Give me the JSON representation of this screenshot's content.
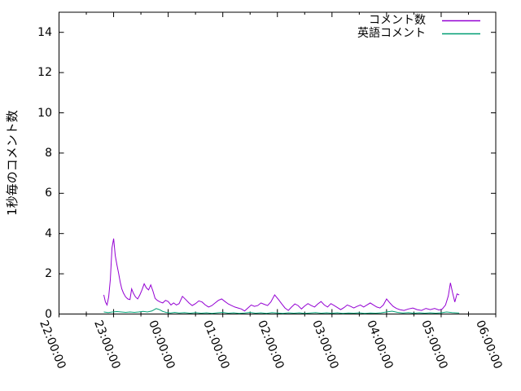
{
  "figure": {
    "background": "#ffffff",
    "text_color": "#000000",
    "axis_color": "#000000"
  },
  "chart_data": {
    "type": "line",
    "title": "",
    "xlabel": "",
    "ylabel": "1秒毎のコメント数",
    "x_start_label": "22:00:00",
    "x_tick_labels": [
      "22:00:00",
      "23:00:00",
      "00:00:00",
      "01:00:00",
      "02:00:00",
      "03:00:00",
      "04:00:00",
      "05:00:00",
      "06:00:00"
    ],
    "x_minor_tick_interval_hours": 0.5,
    "y_tick_labels": [
      "0",
      "2",
      "4",
      "6",
      "8",
      "10",
      "12",
      "14"
    ],
    "ylim": [
      0,
      15
    ],
    "xlim_hours": [
      0,
      8
    ],
    "grid": false,
    "legend_position": "top-right-inside",
    "series": [
      {
        "name": "コメント数",
        "color": "#9400d3",
        "x_unit": "hours_after_22:00:00",
        "points": [
          [
            0.82,
            0.95
          ],
          [
            0.85,
            0.6
          ],
          [
            0.88,
            0.45
          ],
          [
            0.91,
            0.85
          ],
          [
            0.94,
            1.7
          ],
          [
            0.97,
            3.3
          ],
          [
            1.0,
            3.75
          ],
          [
            1.03,
            2.9
          ],
          [
            1.06,
            2.45
          ],
          [
            1.09,
            2.05
          ],
          [
            1.12,
            1.6
          ],
          [
            1.15,
            1.25
          ],
          [
            1.18,
            1.05
          ],
          [
            1.22,
            0.85
          ],
          [
            1.26,
            0.75
          ],
          [
            1.3,
            0.72
          ],
          [
            1.33,
            1.25
          ],
          [
            1.36,
            1.05
          ],
          [
            1.4,
            0.85
          ],
          [
            1.44,
            0.75
          ],
          [
            1.48,
            0.95
          ],
          [
            1.52,
            1.2
          ],
          [
            1.56,
            1.5
          ],
          [
            1.6,
            1.3
          ],
          [
            1.64,
            1.2
          ],
          [
            1.68,
            1.45
          ],
          [
            1.72,
            1.15
          ],
          [
            1.76,
            0.78
          ],
          [
            1.8,
            0.68
          ],
          [
            1.85,
            0.6
          ],
          [
            1.9,
            0.55
          ],
          [
            1.95,
            0.68
          ],
          [
            2.0,
            0.62
          ],
          [
            2.05,
            0.45
          ],
          [
            2.1,
            0.55
          ],
          [
            2.15,
            0.45
          ],
          [
            2.2,
            0.52
          ],
          [
            2.26,
            0.88
          ],
          [
            2.32,
            0.72
          ],
          [
            2.38,
            0.55
          ],
          [
            2.44,
            0.42
          ],
          [
            2.5,
            0.52
          ],
          [
            2.56,
            0.65
          ],
          [
            2.62,
            0.6
          ],
          [
            2.68,
            0.45
          ],
          [
            2.74,
            0.35
          ],
          [
            2.8,
            0.42
          ],
          [
            2.86,
            0.55
          ],
          [
            2.92,
            0.68
          ],
          [
            2.98,
            0.75
          ],
          [
            3.04,
            0.62
          ],
          [
            3.1,
            0.5
          ],
          [
            3.16,
            0.42
          ],
          [
            3.22,
            0.35
          ],
          [
            3.28,
            0.3
          ],
          [
            3.34,
            0.25
          ],
          [
            3.4,
            0.15
          ],
          [
            3.46,
            0.3
          ],
          [
            3.52,
            0.45
          ],
          [
            3.58,
            0.38
          ],
          [
            3.64,
            0.42
          ],
          [
            3.7,
            0.55
          ],
          [
            3.76,
            0.48
          ],
          [
            3.82,
            0.42
          ],
          [
            3.88,
            0.6
          ],
          [
            3.95,
            0.95
          ],
          [
            4.02,
            0.72
          ],
          [
            4.08,
            0.5
          ],
          [
            4.14,
            0.3
          ],
          [
            4.2,
            0.18
          ],
          [
            4.26,
            0.35
          ],
          [
            4.32,
            0.5
          ],
          [
            4.38,
            0.42
          ],
          [
            4.44,
            0.25
          ],
          [
            4.5,
            0.4
          ],
          [
            4.56,
            0.52
          ],
          [
            4.62,
            0.42
          ],
          [
            4.68,
            0.35
          ],
          [
            4.74,
            0.5
          ],
          [
            4.8,
            0.62
          ],
          [
            4.86,
            0.45
          ],
          [
            4.92,
            0.35
          ],
          [
            4.98,
            0.52
          ],
          [
            5.04,
            0.42
          ],
          [
            5.1,
            0.32
          ],
          [
            5.16,
            0.22
          ],
          [
            5.22,
            0.32
          ],
          [
            5.28,
            0.45
          ],
          [
            5.34,
            0.38
          ],
          [
            5.4,
            0.3
          ],
          [
            5.46,
            0.38
          ],
          [
            5.52,
            0.45
          ],
          [
            5.58,
            0.35
          ],
          [
            5.64,
            0.45
          ],
          [
            5.7,
            0.55
          ],
          [
            5.76,
            0.45
          ],
          [
            5.82,
            0.35
          ],
          [
            5.88,
            0.3
          ],
          [
            5.94,
            0.45
          ],
          [
            6.0,
            0.75
          ],
          [
            6.06,
            0.55
          ],
          [
            6.12,
            0.38
          ],
          [
            6.18,
            0.28
          ],
          [
            6.24,
            0.22
          ],
          [
            6.32,
            0.18
          ],
          [
            6.4,
            0.25
          ],
          [
            6.48,
            0.3
          ],
          [
            6.56,
            0.22
          ],
          [
            6.64,
            0.18
          ],
          [
            6.72,
            0.28
          ],
          [
            6.8,
            0.22
          ],
          [
            6.88,
            0.28
          ],
          [
            6.96,
            0.2
          ],
          [
            7.02,
            0.25
          ],
          [
            7.08,
            0.45
          ],
          [
            7.13,
            0.9
          ],
          [
            7.17,
            1.55
          ],
          [
            7.21,
            1.05
          ],
          [
            7.25,
            0.6
          ],
          [
            7.29,
            1.0
          ],
          [
            7.33,
            0.95
          ]
        ]
      },
      {
        "name": "英語コメント",
        "color": "#009e73",
        "x_unit": "hours_after_22:00:00",
        "points": [
          [
            0.82,
            0.1
          ],
          [
            0.9,
            0.07
          ],
          [
            0.98,
            0.1
          ],
          [
            1.06,
            0.12
          ],
          [
            1.14,
            0.1
          ],
          [
            1.22,
            0.08
          ],
          [
            1.3,
            0.1
          ],
          [
            1.38,
            0.08
          ],
          [
            1.46,
            0.1
          ],
          [
            1.54,
            0.13
          ],
          [
            1.62,
            0.1
          ],
          [
            1.7,
            0.15
          ],
          [
            1.78,
            0.27
          ],
          [
            1.84,
            0.22
          ],
          [
            1.9,
            0.13
          ],
          [
            1.96,
            0.08
          ],
          [
            2.04,
            0.05
          ],
          [
            2.12,
            0.08
          ],
          [
            2.2,
            0.05
          ],
          [
            2.3,
            0.07
          ],
          [
            2.4,
            0.04
          ],
          [
            2.5,
            0.07
          ],
          [
            2.6,
            0.04
          ],
          [
            2.7,
            0.06
          ],
          [
            2.8,
            0.03
          ],
          [
            2.9,
            0.06
          ],
          [
            3.0,
            0.08
          ],
          [
            3.1,
            0.04
          ],
          [
            3.2,
            0.06
          ],
          [
            3.3,
            0.03
          ],
          [
            3.4,
            0.05
          ],
          [
            3.5,
            0.08
          ],
          [
            3.6,
            0.04
          ],
          [
            3.7,
            0.06
          ],
          [
            3.8,
            0.03
          ],
          [
            3.9,
            0.07
          ],
          [
            4.0,
            0.05
          ],
          [
            4.1,
            0.03
          ],
          [
            4.2,
            0.06
          ],
          [
            4.3,
            0.04
          ],
          [
            4.4,
            0.06
          ],
          [
            4.5,
            0.03
          ],
          [
            4.6,
            0.05
          ],
          [
            4.7,
            0.07
          ],
          [
            4.8,
            0.04
          ],
          [
            4.9,
            0.06
          ],
          [
            5.0,
            0.04
          ],
          [
            5.1,
            0.06
          ],
          [
            5.2,
            0.03
          ],
          [
            5.3,
            0.05
          ],
          [
            5.4,
            0.04
          ],
          [
            5.5,
            0.06
          ],
          [
            5.6,
            0.03
          ],
          [
            5.7,
            0.05
          ],
          [
            5.8,
            0.04
          ],
          [
            5.9,
            0.06
          ],
          [
            6.0,
            0.1
          ],
          [
            6.1,
            0.14
          ],
          [
            6.2,
            0.08
          ],
          [
            6.3,
            0.05
          ],
          [
            6.4,
            0.07
          ],
          [
            6.5,
            0.04
          ],
          [
            6.6,
            0.06
          ],
          [
            6.7,
            0.04
          ],
          [
            6.8,
            0.06
          ],
          [
            6.9,
            0.04
          ],
          [
            7.0,
            0.06
          ],
          [
            7.1,
            0.1
          ],
          [
            7.2,
            0.07
          ],
          [
            7.33,
            0.05
          ]
        ]
      }
    ]
  }
}
